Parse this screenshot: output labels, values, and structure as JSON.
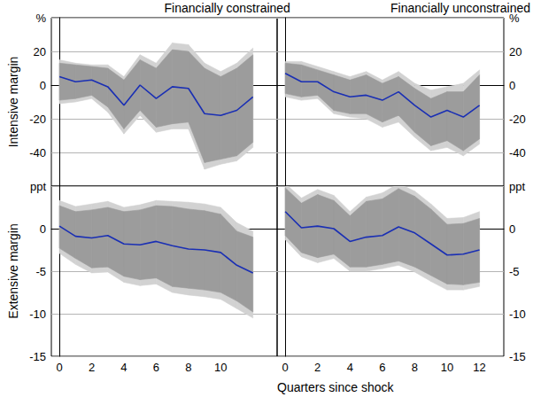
{
  "chart_data": [
    {
      "type": "line",
      "title": "Financially constrained",
      "ylabel": "Intensive margin",
      "x": [
        0,
        1,
        2,
        3,
        4,
        5,
        6,
        7,
        8,
        9,
        10,
        11,
        12
      ],
      "values": [
        5,
        2,
        3,
        -1,
        -12,
        0,
        -8,
        -1,
        -2,
        -17,
        -18,
        -15,
        -7
      ],
      "color": "#1a2fb4",
      "bands": [
        {
          "color": "#d2d2d2",
          "lower": [
            -11,
            -10,
            -8,
            -16,
            -29,
            -18,
            -28,
            -26,
            -26,
            -50,
            -47,
            -45,
            -37
          ],
          "upper": [
            15,
            13,
            12,
            12,
            5,
            18,
            13,
            25,
            24,
            13,
            8,
            13,
            22
          ]
        },
        {
          "color": "#9c9c9c",
          "lower": [
            -9,
            -8,
            -6,
            -13,
            -26,
            -15,
            -25,
            -23,
            -22,
            -46,
            -44,
            -42,
            -34
          ],
          "upper": [
            13,
            12,
            11,
            10,
            3,
            15,
            10,
            21,
            20,
            10,
            5,
            10,
            18
          ]
        }
      ],
      "xlim": [
        -0.5,
        13.5
      ],
      "ylim": [
        -60,
        40
      ],
      "yticks": [
        {
          "value": 40,
          "label": "%"
        },
        20,
        0,
        -20,
        -40
      ],
      "grid": true,
      "tick_labels": "y"
    },
    {
      "type": "line",
      "title": "Financially unconstrained",
      "x": [
        0,
        1,
        2,
        3,
        4,
        5,
        6,
        7,
        8,
        9,
        10,
        11,
        12
      ],
      "values": [
        7,
        2,
        2,
        -4,
        -7,
        -6,
        -9,
        -4,
        -12,
        -19,
        -15,
        -19,
        -12
      ],
      "color": "#1a2fb4",
      "bands": [
        {
          "color": "#d2d2d2",
          "lower": [
            -7,
            -9,
            -8,
            -17,
            -19,
            -20,
            -25,
            -22,
            -31,
            -39,
            -37,
            -42,
            -35
          ],
          "upper": [
            14,
            14,
            11,
            8,
            5,
            8,
            3,
            8,
            1,
            -3,
            -1,
            1,
            9
          ]
        },
        {
          "color": "#9c9c9c",
          "lower": [
            -5,
            -7,
            -6,
            -15,
            -17,
            -17,
            -22,
            -18,
            -28,
            -36,
            -33,
            -39,
            -32
          ],
          "upper": [
            13,
            12,
            9,
            6,
            3,
            6,
            1,
            5,
            -2,
            -8,
            -4,
            -4,
            6
          ]
        }
      ],
      "xlim": [
        -0.5,
        13.5
      ],
      "ylim": [
        -60,
        40
      ],
      "yticks": [
        {
          "value": 40,
          "label": "%"
        },
        20,
        0,
        -20,
        -40
      ],
      "grid": true,
      "tick_labels": "y"
    },
    {
      "type": "line",
      "ylabel": "Extensive margin",
      "x": [
        0,
        1,
        2,
        3,
        4,
        5,
        6,
        7,
        8,
        9,
        10,
        11,
        12
      ],
      "values": [
        0.3,
        -0.9,
        -1.1,
        -0.8,
        -1.8,
        -1.9,
        -1.5,
        -2.0,
        -2.4,
        -2.5,
        -2.8,
        -4.3,
        -5.2
      ],
      "color": "#1a2fb4",
      "bands": [
        {
          "color": "#d2d2d2",
          "lower": [
            -2.9,
            -4.2,
            -5.2,
            -5.1,
            -6.3,
            -6.7,
            -6.5,
            -7.5,
            -7.8,
            -8,
            -8.3,
            -9.4,
            -10.5
          ],
          "upper": [
            3.3,
            2.6,
            2.9,
            3.2,
            2.5,
            2.8,
            3.3,
            3.2,
            3.1,
            2.9,
            2.5,
            0.7,
            -0.3
          ]
        },
        {
          "color": "#9c9c9c",
          "lower": [
            -2.3,
            -3.5,
            -4.6,
            -4.5,
            -5.6,
            -6,
            -5.8,
            -6.8,
            -7,
            -7.2,
            -7.5,
            -8.5,
            -9.8
          ],
          "upper": [
            2.7,
            2,
            2.2,
            2.5,
            2,
            2.2,
            2.7,
            2.6,
            2.3,
            2.1,
            1.7,
            -0.3,
            -1
          ]
        }
      ],
      "xlim": [
        -0.5,
        13.5
      ],
      "ylim": [
        -15,
        5
      ],
      "xticks": [
        0,
        2,
        4,
        6,
        8,
        10
      ],
      "yticks": [
        {
          "value": 5,
          "label": "ppt"
        },
        0,
        -5,
        -10,
        -15
      ],
      "grid": true
    },
    {
      "type": "line",
      "x": [
        0,
        1,
        2,
        3,
        4,
        5,
        6,
        7,
        8,
        9,
        10,
        11,
        12
      ],
      "values": [
        2,
        0.1,
        0.3,
        0,
        -1.5,
        -1,
        -0.8,
        0.2,
        -0.5,
        -1.8,
        -3.1,
        -3,
        -2.5
      ],
      "color": "#1a2fb4",
      "bands": [
        {
          "color": "#d2d2d2",
          "lower": [
            -1.3,
            -3.3,
            -4,
            -3.5,
            -5,
            -5,
            -4.7,
            -4.3,
            -5.1,
            -6.2,
            -7.2,
            -7.2,
            -6.8
          ],
          "upper": [
            5.3,
            3.6,
            4.6,
            3.9,
            2,
            3.7,
            4.2,
            5.3,
            4.4,
            2.9,
            1.2,
            1.3,
            2
          ]
        },
        {
          "color": "#9c9c9c",
          "lower": [
            -0.8,
            -2.8,
            -3.4,
            -3,
            -4.5,
            -4.5,
            -4.2,
            -3.8,
            -4.5,
            -5.5,
            -6.5,
            -6.6,
            -6.3
          ],
          "upper": [
            4.8,
            3,
            4,
            3.3,
            1.5,
            3.2,
            3.5,
            4.7,
            3.8,
            2.3,
            0.5,
            0.6,
            1.2
          ]
        }
      ],
      "xlim": [
        -0.5,
        13.5
      ],
      "ylim": [
        -15,
        5
      ],
      "xticks": [
        0,
        2,
        4,
        6,
        8,
        10,
        12
      ],
      "yticks": [
        {
          "value": 5,
          "label": "ppt"
        },
        0,
        -5,
        -10,
        -15
      ],
      "grid": true
    }
  ],
  "xlabel": "Quarters since shock"
}
